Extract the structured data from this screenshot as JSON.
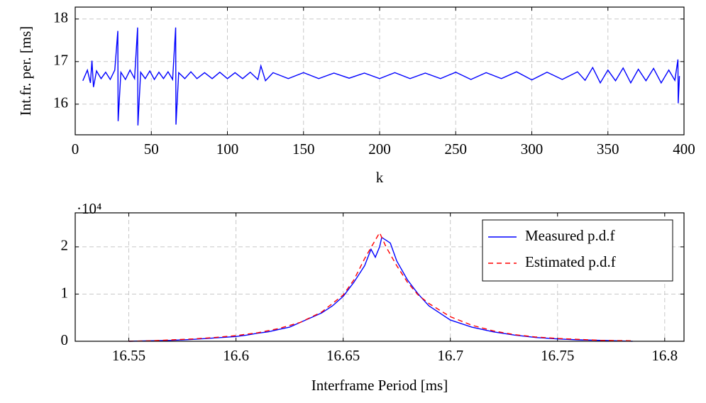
{
  "chart_data": [
    {
      "type": "line",
      "xlabel": "k",
      "ylabel": "Int.fr. per. [ms]",
      "xlim": [
        0,
        400
      ],
      "ylim": [
        15.28,
        18.28
      ],
      "xticks": [
        0,
        50,
        100,
        150,
        200,
        250,
        300,
        350,
        400
      ],
      "yticks": [
        16,
        17,
        18
      ],
      "grid": true,
      "x": [
        5,
        8,
        10,
        11,
        12,
        14,
        17,
        20,
        23,
        26,
        28,
        28.2,
        30,
        33,
        36,
        39,
        41,
        41.2,
        43,
        46,
        49,
        52,
        55,
        58,
        61,
        64,
        66,
        66.2,
        68,
        72,
        76,
        80,
        85,
        90,
        95,
        100,
        105,
        110,
        115,
        120,
        122,
        125,
        130,
        140,
        150,
        160,
        170,
        180,
        190,
        200,
        210,
        220,
        230,
        240,
        250,
        260,
        270,
        280,
        290,
        300,
        310,
        320,
        330,
        335,
        340,
        345,
        350,
        355,
        360,
        365,
        370,
        375,
        380,
        385,
        390,
        394,
        396,
        396.2,
        397
      ],
      "series": [
        {
          "color": "#0000ff",
          "line_style": "solid",
          "values": [
            16.55,
            16.8,
            16.5,
            17.02,
            16.4,
            16.78,
            16.6,
            16.75,
            16.58,
            16.8,
            17.72,
            15.6,
            16.75,
            16.58,
            16.8,
            16.6,
            17.8,
            15.5,
            16.75,
            16.6,
            16.78,
            16.58,
            16.75,
            16.6,
            16.76,
            16.58,
            17.8,
            15.52,
            16.74,
            16.6,
            16.76,
            16.6,
            16.74,
            16.6,
            16.75,
            16.6,
            16.74,
            16.6,
            16.75,
            16.58,
            16.9,
            16.55,
            16.74,
            16.6,
            16.74,
            16.6,
            16.73,
            16.61,
            16.73,
            16.6,
            16.74,
            16.6,
            16.73,
            16.6,
            16.75,
            16.58,
            16.74,
            16.6,
            16.76,
            16.57,
            16.75,
            16.58,
            16.76,
            16.56,
            16.86,
            16.5,
            16.8,
            16.55,
            16.85,
            16.5,
            16.82,
            16.55,
            16.84,
            16.5,
            16.8,
            16.56,
            17.05,
            16.02,
            16.66
          ]
        }
      ]
    },
    {
      "type": "line",
      "xlabel": "Interframe Period [ms]",
      "y_scale_label": "·10⁴",
      "xlim": [
        16.525,
        16.809
      ],
      "ylim": [
        0,
        2.72
      ],
      "xticks": [
        16.55,
        16.6,
        16.65,
        16.7,
        16.75,
        16.8
      ],
      "yticks": [
        0,
        1,
        2
      ],
      "grid": true,
      "legend": "north east",
      "series": [
        {
          "name": "Measured p.d.f",
          "color": "#0000ff",
          "line_style": "solid",
          "x": [
            16.55,
            16.56,
            16.57,
            16.58,
            16.59,
            16.6,
            16.605,
            16.61,
            16.615,
            16.62,
            16.625,
            16.63,
            16.635,
            16.64,
            16.645,
            16.65,
            16.655,
            16.66,
            16.663,
            16.665,
            16.667,
            16.668,
            16.672,
            16.675,
            16.68,
            16.685,
            16.69,
            16.695,
            16.7,
            16.71,
            16.72,
            16.73,
            16.74,
            16.75,
            16.76,
            16.77,
            16.785
          ],
          "values": [
            0,
            0.01,
            0.02,
            0.04,
            0.07,
            0.1,
            0.13,
            0.17,
            0.2,
            0.25,
            0.3,
            0.4,
            0.5,
            0.6,
            0.75,
            0.95,
            1.25,
            1.6,
            1.95,
            1.78,
            2.0,
            2.2,
            2.08,
            1.7,
            1.3,
            1.0,
            0.75,
            0.6,
            0.45,
            0.3,
            0.2,
            0.13,
            0.08,
            0.05,
            0.03,
            0.02,
            0
          ]
        },
        {
          "name": "Estimated p.d.f",
          "color": "#ff0000",
          "line_style": "dashed",
          "x": [
            16.55,
            16.56,
            16.57,
            16.58,
            16.59,
            16.6,
            16.61,
            16.62,
            16.63,
            16.64,
            16.65,
            16.655,
            16.66,
            16.667,
            16.67,
            16.675,
            16.68,
            16.685,
            16.69,
            16.7,
            16.71,
            16.72,
            16.73,
            16.74,
            16.75,
            16.76,
            16.77,
            16.785
          ],
          "values": [
            0,
            0.01,
            0.03,
            0.05,
            0.08,
            0.12,
            0.18,
            0.27,
            0.4,
            0.62,
            0.98,
            1.3,
            1.75,
            2.3,
            2.0,
            1.6,
            1.25,
            0.98,
            0.8,
            0.52,
            0.34,
            0.22,
            0.14,
            0.09,
            0.06,
            0.04,
            0.02,
            0.01
          ]
        }
      ]
    }
  ]
}
